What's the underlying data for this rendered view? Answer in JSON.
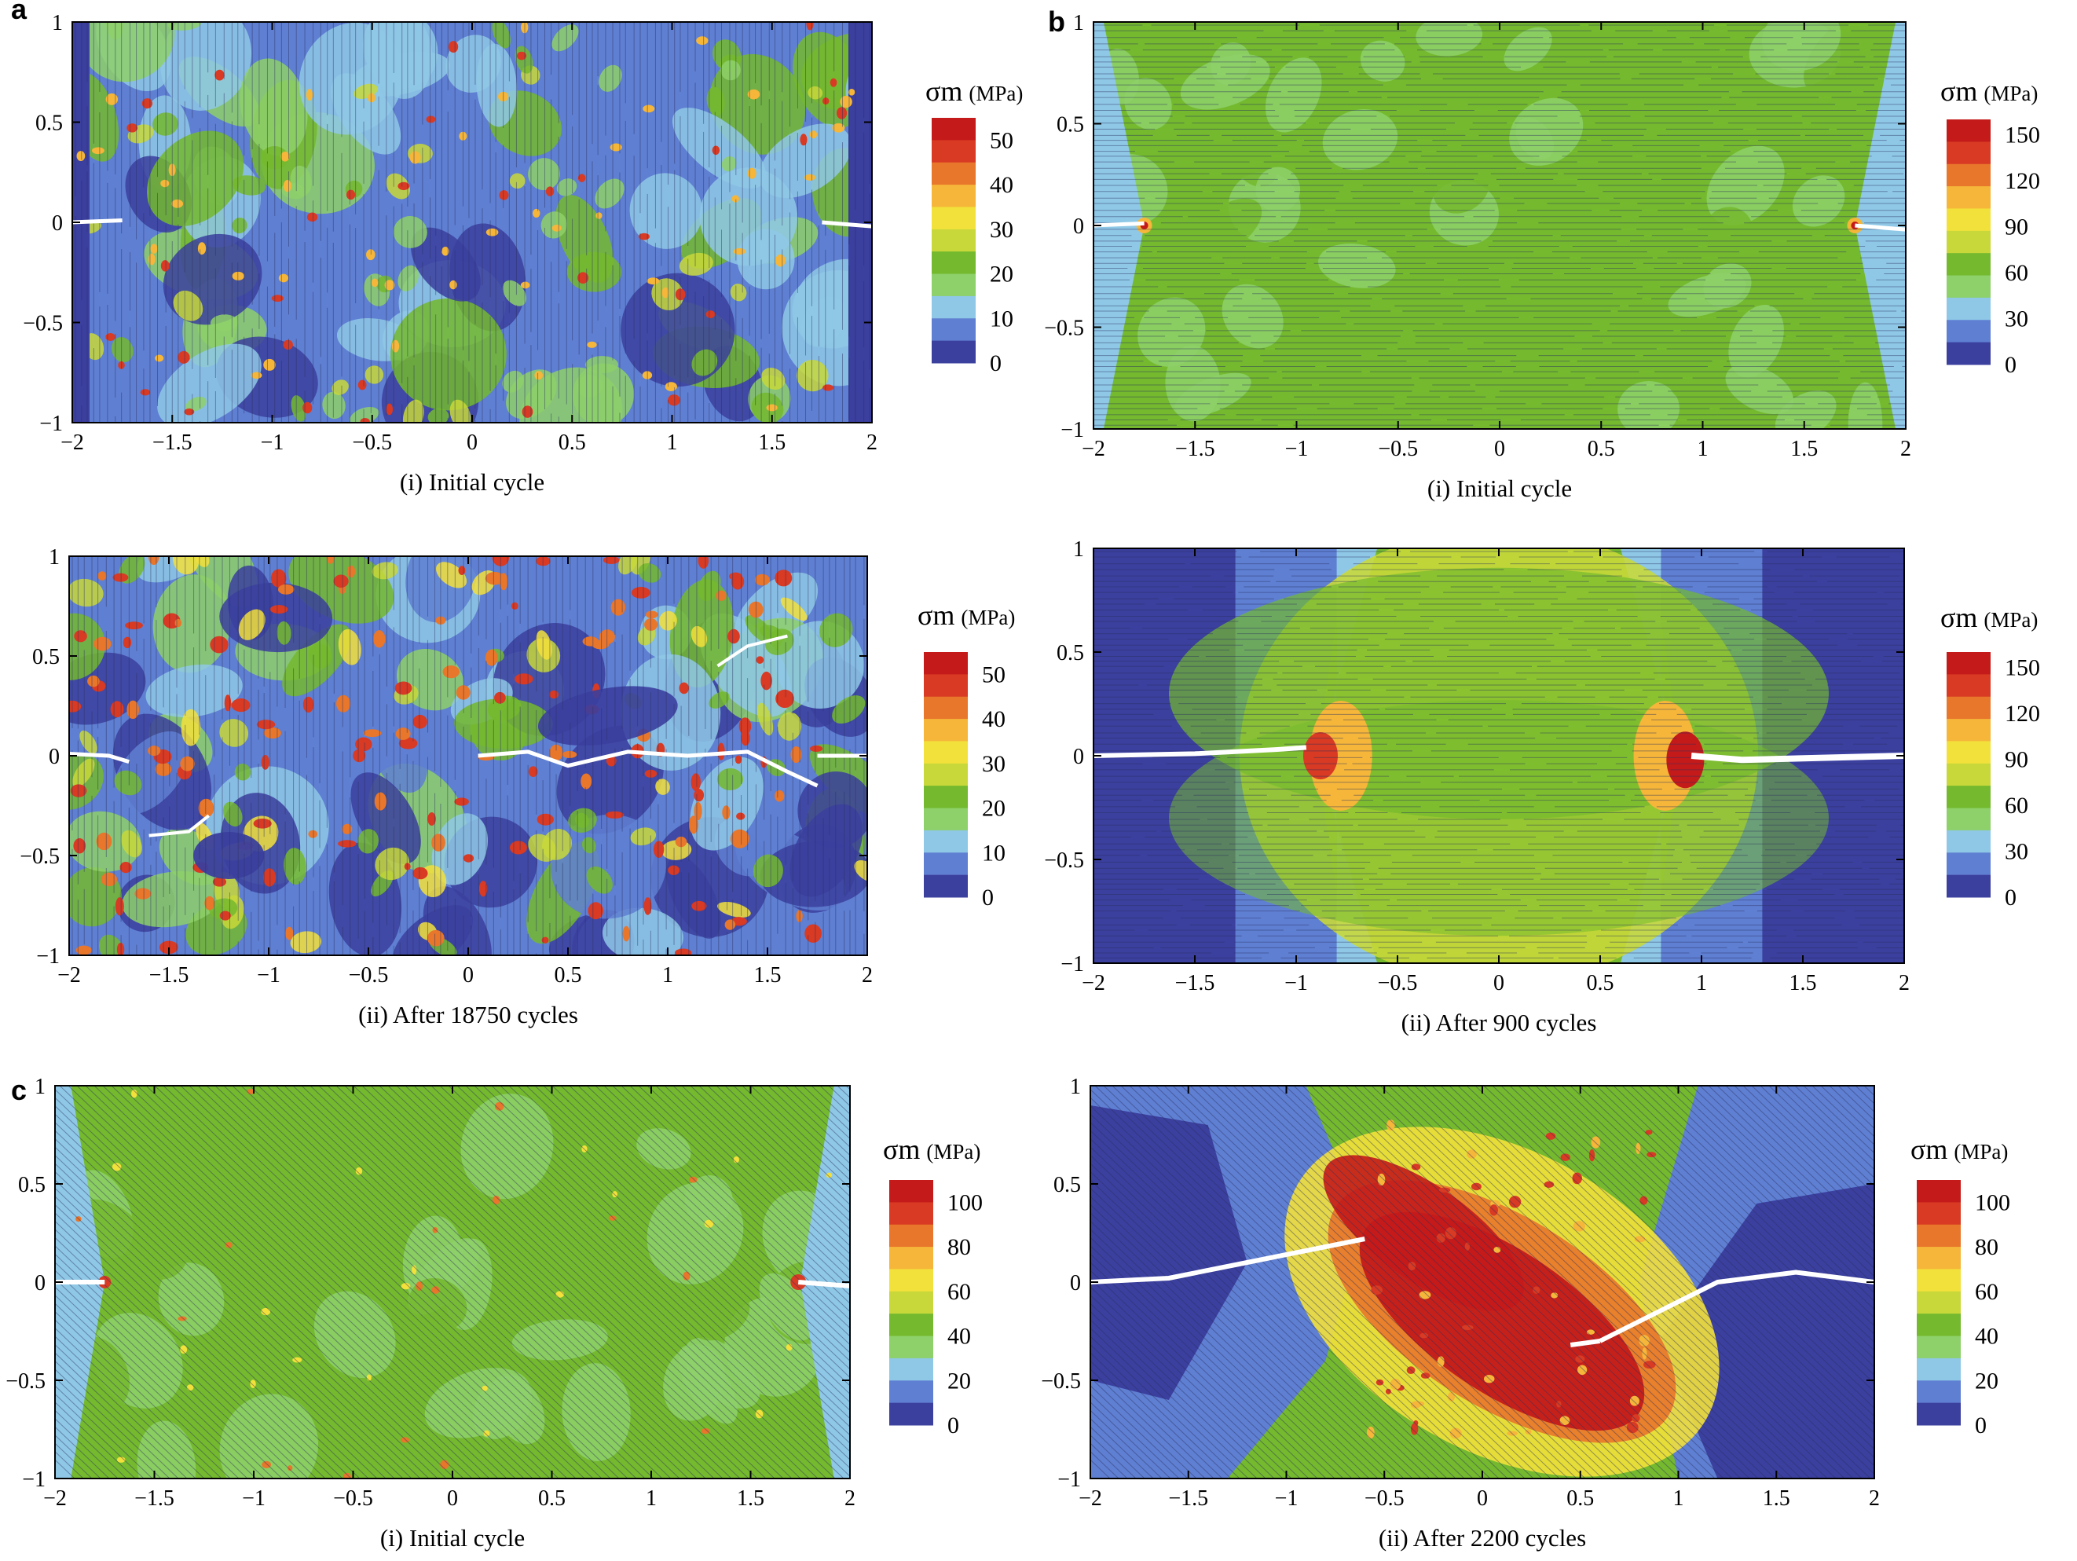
{
  "figure": {
    "panels": [
      {
        "letter": "a",
        "subplots": [
          {
            "caption": "(i) Initial cycle",
            "pattern": "vertical-fibers",
            "colorbar": {
              "title": "σm",
              "unit": "(MPa)",
              "ticks": [
                "50",
                "40",
                "30",
                "20",
                "10",
                "0"
              ]
            }
          },
          {
            "caption": "(ii) After 18750 cycles",
            "pattern": "vertical-fibers-damaged",
            "colorbar": {
              "title": "σm",
              "unit": "(MPa)",
              "ticks": [
                "50",
                "40",
                "30",
                "20",
                "10",
                "0"
              ]
            }
          }
        ]
      },
      {
        "letter": "b",
        "subplots": [
          {
            "caption": "(i) Initial cycle",
            "pattern": "horizontal-fibers",
            "colorbar": {
              "title": "σm",
              "unit": "(MPa)",
              "ticks": [
                "150",
                "120",
                "90",
                "60",
                "30",
                "0"
              ]
            }
          },
          {
            "caption": "(ii) After 900 cycles",
            "pattern": "horizontal-fibers-damaged",
            "colorbar": {
              "title": "σm",
              "unit": "(MPa)",
              "ticks": [
                "150",
                "120",
                "90",
                "60",
                "30",
                "0"
              ]
            }
          }
        ]
      },
      {
        "letter": "c",
        "subplots": [
          {
            "caption": "(i) Initial cycle",
            "pattern": "diagonal-fibers",
            "colorbar": {
              "title": "σm",
              "unit": "(MPa)",
              "ticks": [
                "100",
                "80",
                "60",
                "40",
                "20",
                "0"
              ]
            }
          },
          {
            "caption": "(ii) After 2200 cycles",
            "pattern": "diagonal-fibers-damaged",
            "colorbar": {
              "title": "σm",
              "unit": "(MPa)",
              "ticks": [
                "100",
                "80",
                "60",
                "40",
                "20",
                "0"
              ]
            }
          }
        ]
      }
    ]
  },
  "chart_data": [
    {
      "type": "heatmap",
      "panel": "a",
      "caption": "(i) Initial cycle",
      "xlim": [
        -2,
        2
      ],
      "ylim": [
        -1,
        1
      ],
      "xticks": [
        "−2",
        "−1.5",
        "−1",
        "−0.5",
        "0",
        "0.5",
        "1",
        "1.5",
        "2"
      ],
      "yticks": [
        "1",
        "0.5",
        "0",
        "−0.5",
        "−1"
      ],
      "colorbar": {
        "label": "σm (MPa)",
        "range": [
          0,
          55
        ],
        "ticks": [
          0,
          10,
          20,
          30,
          40,
          50
        ]
      }
    },
    {
      "type": "heatmap",
      "panel": "a",
      "caption": "(ii) After 18750 cycles",
      "xlim": [
        -2,
        2
      ],
      "ylim": [
        -1,
        1
      ],
      "xticks": [
        "−2",
        "−1.5",
        "−1",
        "−0.5",
        "0",
        "0.5",
        "1",
        "1.5",
        "2"
      ],
      "yticks": [
        "1",
        "0.5",
        "0",
        "−0.5",
        "−1"
      ],
      "colorbar": {
        "label": "σm (MPa)",
        "range": [
          0,
          55
        ],
        "ticks": [
          0,
          10,
          20,
          30,
          40,
          50
        ]
      }
    },
    {
      "type": "heatmap",
      "panel": "b",
      "caption": "(i) Initial cycle",
      "xlim": [
        -2,
        2
      ],
      "ylim": [
        -1,
        1
      ],
      "xticks": [
        "−2",
        "−1.5",
        "−1",
        "−0.5",
        "0",
        "0.5",
        "1",
        "1.5",
        "2"
      ],
      "yticks": [
        "1",
        "0.5",
        "0",
        "−0.5",
        "−1"
      ],
      "colorbar": {
        "label": "σm (MPa)",
        "range": [
          0,
          160
        ],
        "ticks": [
          0,
          30,
          60,
          90,
          120,
          150
        ]
      }
    },
    {
      "type": "heatmap",
      "panel": "b",
      "caption": "(ii) After 900 cycles",
      "xlim": [
        -2,
        2
      ],
      "ylim": [
        -1,
        1
      ],
      "xticks": [
        "−2",
        "−1.5",
        "−1",
        "−0.5",
        "0",
        "0.5",
        "1",
        "1.5",
        "2"
      ],
      "yticks": [
        "1",
        "0.5",
        "0",
        "−0.5",
        "−1"
      ],
      "colorbar": {
        "label": "σm (MPa)",
        "range": [
          0,
          160
        ],
        "ticks": [
          0,
          30,
          60,
          90,
          120,
          150
        ]
      }
    },
    {
      "type": "heatmap",
      "panel": "c",
      "caption": "(i) Initial cycle",
      "xlim": [
        -2,
        2
      ],
      "ylim": [
        -1,
        1
      ],
      "xticks": [
        "−2",
        "−1.5",
        "−1",
        "−0.5",
        "0",
        "0.5",
        "1",
        "1.5",
        "2"
      ],
      "yticks": [
        "1",
        "0.5",
        "0",
        "−0.5",
        "−1"
      ],
      "colorbar": {
        "label": "σm (MPa)",
        "range": [
          0,
          110
        ],
        "ticks": [
          0,
          20,
          40,
          60,
          80,
          100
        ]
      }
    },
    {
      "type": "heatmap",
      "panel": "c",
      "caption": "(ii) After 2200 cycles",
      "xlim": [
        -2,
        2
      ],
      "ylim": [
        -1,
        1
      ],
      "xticks": [
        "−2",
        "−1.5",
        "−1",
        "−0.5",
        "0",
        "0.5",
        "1",
        "1.5",
        "2"
      ],
      "yticks": [
        "1",
        "0.5",
        "0",
        "−0.5",
        "−1"
      ],
      "colorbar": {
        "label": "σm (MPa)",
        "range": [
          0,
          110
        ],
        "ticks": [
          0,
          20,
          40,
          60,
          80,
          100
        ]
      }
    }
  ],
  "colors": {
    "scale": [
      "#3b3f9e",
      "#5f7fd2",
      "#8fc8e6",
      "#8ed06a",
      "#74b92e",
      "#c8d83a",
      "#f3e13b",
      "#f5b63a",
      "#e8762b",
      "#d83a23",
      "#c41a1a"
    ],
    "crack": "#ffffff",
    "fiber": "#2a3060"
  }
}
